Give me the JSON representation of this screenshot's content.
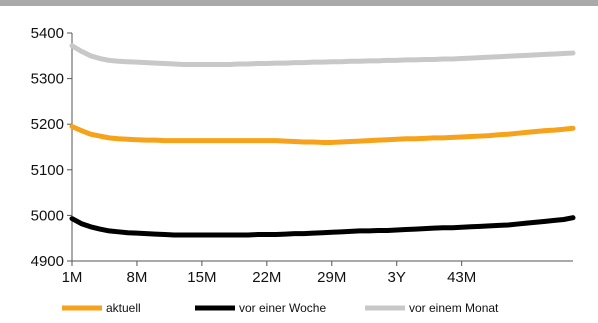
{
  "chart_data": {
    "type": "line",
    "title": "",
    "xlabel": "",
    "ylabel": "",
    "ylim": [
      4900,
      5400
    ],
    "yticks": [
      4900,
      5000,
      5100,
      5200,
      5300,
      5400
    ],
    "ytick_labels": [
      "4900",
      "5000",
      "5100",
      "5200",
      "5300",
      "5400"
    ],
    "x_tick_labels": [
      "1M",
      "8M",
      "15M",
      "22M",
      "29M",
      "3Y",
      "43M"
    ],
    "grid": false,
    "legend": "bottom",
    "n_points": 55,
    "series": [
      {
        "name": "aktuell",
        "color": "#f7a21b",
        "values": [
          5195,
          5186,
          5178,
          5174,
          5170,
          5168,
          5167,
          5166,
          5165,
          5165,
          5164,
          5164,
          5164,
          5164,
          5164,
          5164,
          5164,
          5164,
          5164,
          5164,
          5164,
          5164,
          5164,
          5163,
          5162,
          5161,
          5161,
          5160,
          5160,
          5161,
          5162,
          5163,
          5164,
          5165,
          5166,
          5167,
          5168,
          5168,
          5169,
          5170,
          5170,
          5171,
          5172,
          5173,
          5174,
          5175,
          5177,
          5178,
          5180,
          5182,
          5184,
          5186,
          5187,
          5189,
          5191
        ]
      },
      {
        "name": "vor einer Woche",
        "color": "#000000",
        "values": [
          4993,
          4982,
          4975,
          4970,
          4966,
          4964,
          4962,
          4961,
          4960,
          4959,
          4958,
          4957,
          4957,
          4957,
          4957,
          4957,
          4957,
          4957,
          4957,
          4957,
          4958,
          4958,
          4958,
          4959,
          4960,
          4960,
          4961,
          4962,
          4963,
          4964,
          4965,
          4966,
          4966,
          4967,
          4967,
          4968,
          4969,
          4970,
          4971,
          4972,
          4973,
          4973,
          4974,
          4975,
          4976,
          4977,
          4978,
          4979,
          4981,
          4983,
          4985,
          4987,
          4989,
          4991,
          4995
        ]
      },
      {
        "name": "vor einem Monat",
        "color": "#c8c8c8",
        "values": [
          5372,
          5360,
          5350,
          5344,
          5340,
          5338,
          5337,
          5336,
          5335,
          5334,
          5333,
          5332,
          5331,
          5331,
          5331,
          5331,
          5331,
          5331,
          5332,
          5332,
          5333,
          5333,
          5334,
          5334,
          5335,
          5335,
          5336,
          5336,
          5337,
          5337,
          5338,
          5338,
          5339,
          5339,
          5340,
          5340,
          5341,
          5341,
          5342,
          5342,
          5343,
          5343,
          5344,
          5345,
          5346,
          5347,
          5348,
          5349,
          5350,
          5351,
          5352,
          5353,
          5354,
          5355,
          5356
        ]
      }
    ]
  }
}
